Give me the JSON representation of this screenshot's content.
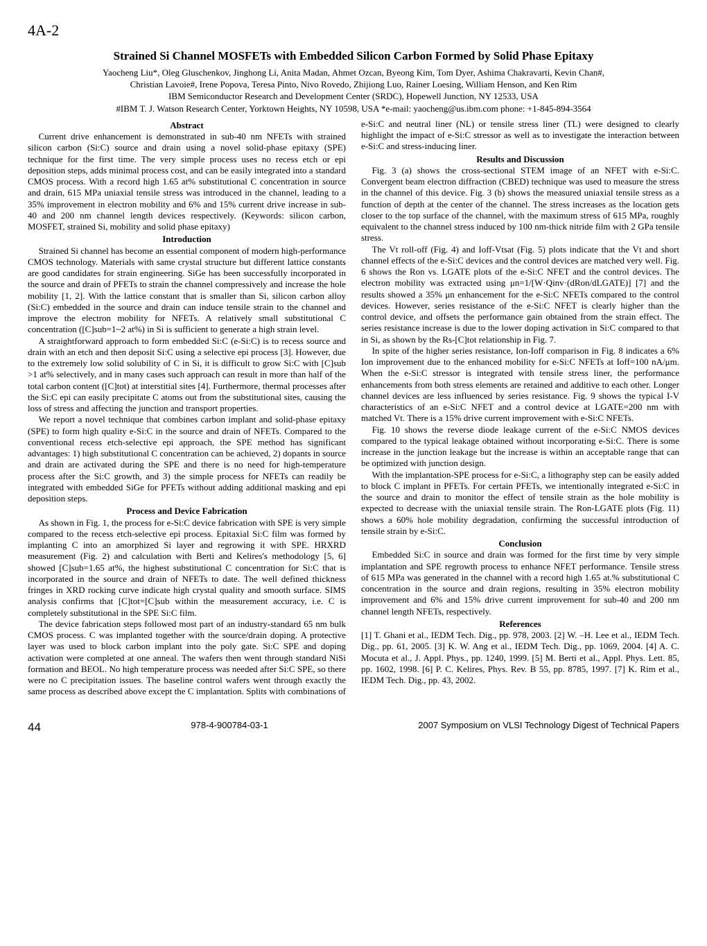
{
  "header": {
    "section_id": "4A-2",
    "title": "Strained Si Channel MOSFETs with Embedded Silicon Carbon Formed by Solid Phase Epitaxy",
    "authors": "Yaocheng Liu*, Oleg Gluschenkov, Jinghong Li, Anita Madan, Ahmet Ozcan, Byeong Kim, Tom Dyer, Ashima Chakravarti, Kevin Chan#,",
    "authors2": "Christian Lavoie#, Irene Popova, Teresa Pinto, Nivo Rovedo, Zhijiong Luo, Rainer Loesing, William Henson, and Ken Rim",
    "affil1": "IBM Semiconductor Research and Development Center (SRDC), Hopewell Junction, NY 12533, USA",
    "affil2": "#IBM T. J. Watson Research Center, Yorktown Heights, NY 10598, USA      *e-mail: yaocheng@us.ibm.com      phone: +1-845-894-3564"
  },
  "body": {
    "h_abstract": "Abstract",
    "p1": "Current drive enhancement is demonstrated in sub-40 nm NFETs with strained silicon carbon (Si:C) source and drain using a novel solid-phase epitaxy (SPE) technique for the first time.  The very simple process uses no recess etch or epi deposition steps, adds minimal process cost, and can be easily integrated into a standard CMOS process.  With a record high 1.65 at% substitutional C concentration in source and drain, 615 MPa uniaxial tensile stress was introduced in the channel, leading to a 35% improvement in electron mobility and 6% and 15% current drive increase in sub-40 and 200 nm channel length devices respectively. (Keywords: silicon carbon, MOSFET, strained Si, mobility and solid phase epitaxy)",
    "h_intro": "Introduction",
    "p2": "Strained Si channel has become an essential component of modern high-performance CMOS technology. Materials with same crystal structure but different lattice constants are good candidates for strain engineering. SiGe has been successfully incorporated in the source and drain of PFETs to strain the channel compressively and increase the hole mobility [1, 2]. With the lattice constant that is smaller than Si, silicon carbon alloy (Si:C) embedded in the source and drain can induce tensile strain to the channel and improve the electron mobility for NFETs. A relatively small substitutional C concentration ([C]sub=1~2 at%) in Si is sufficient to generate a high strain level.",
    "p3": "A straightforward approach to form embedded Si:C (e-Si:C) is to recess source and drain with an etch and then deposit Si:C using a selective epi process [3]. However, due to the extremely low solid solubility of C in Si, it is difficult to grow Si:C with [C]sub >1 at% selectively, and in many cases such approach can result in more than half of the total carbon content ([C]tot) at interstitial sites [4]. Furthermore, thermal processes after the Si:C epi can easily precipitate C atoms out from the substitutional sites, causing the loss of stress and affecting the junction and transport properties.",
    "p4": "We report a novel technique that combines carbon implant and solid-phase epitaxy (SPE) to form high quality e-Si:C in the source and drain of NFETs. Compared to the conventional recess etch-selective epi approach, the SPE method has significant advantages: 1) high substitutional C concentration can be achieved, 2) dopants in source and drain are activated during the SPE and there is no need for high-temperature process after the Si:C growth, and 3) the simple process for NFETs can readily be integrated with embedded SiGe for PFETs without adding additional masking and epi deposition steps.",
    "h_process": "Process and Device Fabrication",
    "p5": "As shown in Fig. 1, the process for e-Si:C device fabrication with SPE is very simple compared to the recess etch-selective epi process. Epitaxial Si:C film was formed by implanting C into an amorphized Si layer and regrowing it with SPE. HRXRD measurement (Fig. 2) and calculation with Berti and Kelires's methodology [5, 6] showed [C]sub=1.65 at%, the highest substitutional C concentration for Si:C that is incorporated in the source and drain of NFETs to date. The well defined thickness fringes in XRD rocking curve indicate high crystal quality and smooth surface. SIMS analysis confirms that [C]tot=[C]sub within the measurement accuracy, i.e. C is completely substitutional in the SPE Si:C film.",
    "p6": "The device fabrication steps followed most part of an industry-standard 65 nm bulk CMOS process. C was implanted together with the source/drain doping. A protective layer was used to block carbon implant into the poly gate. Si:C SPE and doping activation were completed at one anneal. The wafers then went through standard NiSi formation and BEOL. No high temperature process was needed after Si:C SPE, so there were no C precipitation issues. The baseline control wafers went through exactly the same process as described above except the C implantation. Splits with combinations of e-Si:C and neutral liner (NL) or tensile stress liner (TL) were designed to clearly highlight the impact of e-Si:C stressor as well as to investigate the interaction between e-Si:C and stress-inducing liner.",
    "h_results": "Results and Discussion",
    "p7": "Fig. 3 (a) shows the cross-sectional STEM image of an NFET with e-Si:C. Convergent beam electron diffraction (CBED) technique was used to measure the stress in the channel of this device. Fig. 3 (b) shows the measured uniaxial tensile stress as a function of depth at the center of the channel. The stress increases as the location gets closer to the top surface of the channel, with the maximum stress of 615 MPa, roughly equivalent to the channel stress induced by 100 nm-thick nitride film with 2 GPa tensile stress.",
    "p8": "The Vt roll-off (Fig. 4) and Ioff-Vtsat (Fig. 5) plots indicate that the Vt and short channel effects of the e-Si:C devices and the control devices are matched very well. Fig. 6 shows the Ron vs. LGATE plots of the e-Si:C NFET and the control devices. The electron mobility was extracted using μn=1/[W·Qinv·(dRon/dLGATE)] [7] and the results showed a 35% μn enhancement for the e-Si:C NFETs compared to the control devices. However, series resistance of the e-Si:C NFET is clearly higher than the control device, and offsets the performance gain obtained from the strain effect. The series resistance increase is due to the lower doping activation in Si:C compared to that in Si, as shown by the Rs-[C]tot relationship in Fig. 7.",
    "p9": "In spite of the higher series resistance, Ion-Ioff comparison in Fig. 8 indicates a 6% Ion improvement due to the enhanced mobility for e-Si:C NFETs at Ioff=100 nA/μm. When the e-Si:C stressor is integrated with tensile stress liner, the performance enhancements from both stress elements are retained and additive to each other. Longer channel devices are less influenced by series resistance. Fig. 9 shows the typical I-V characteristics of an e-Si:C NFET and a control device at LGATE=200 nm with matched Vt. There is a 15% drive current improvement with e-Si:C NFETs.",
    "p10": "Fig. 10 shows the reverse diode leakage current of the e-Si:C NMOS devices compared to the typical leakage obtained without incorporating e-Si:C. There is some increase in the junction leakage but the increase is within an acceptable range that can be optimized with junction design.",
    "p11": "With the implantation-SPE process for e-Si:C, a lithography step can be easily added to block C implant in PFETs. For certain PFETs, we intentionally integrated e-Si:C in the source and drain to monitor the effect of tensile strain as the hole mobility is expected to decrease with the uniaxial tensile strain. The Ron-LGATE plots (Fig. 11) shows a 60% hole mobility degradation, confirming the successful introduction of tensile strain by e-Si:C.",
    "h_conclusion": "Conclusion",
    "p12": "Embedded Si:C in source and drain was formed for the first time by very simple implantation and SPE regrowth process to enhance NFET performance. Tensile stress of 615 MPa was generated in the channel with a record high 1.65 at.% substitutional C concentration in the source and drain regions, resulting in 35% electron mobility improvement and 6% and 15% drive current improvement for sub-40 and 200 nm channel length NFETs, respectively.",
    "h_refs": "References",
    "p13": "[1] T. Ghani et al., IEDM Tech. Dig., pp. 978, 2003.  [2] W. –H. Lee et al., IEDM Tech. Dig., pp. 61, 2005.  [3] K. W. Ang et al., IEDM Tech. Dig., pp. 1069, 2004.  [4] A. C. Mocuta et al., J. Appl. Phys., pp. 1240, 1999.  [5] M. Berti et al., Appl. Phys. Lett. 85, pp. 1602, 1998.  [6] P. C. Kelires, Phys. Rev. B 55, pp. 8785, 1997.  [7] K. Rim et al., IEDM Tech. Dig., pp. 43, 2002."
  },
  "footer": {
    "page": "44",
    "isbn": "978-4-900784-03-1",
    "conf": "2007 Symposium on VLSI Technology Digest of Technical Papers"
  }
}
